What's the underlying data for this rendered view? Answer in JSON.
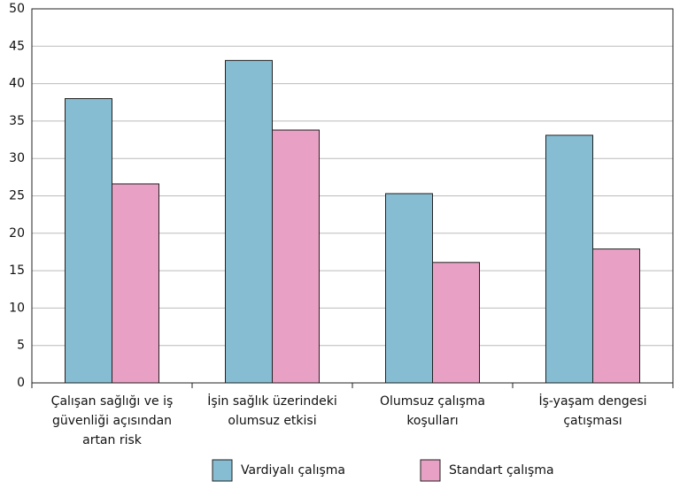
{
  "chart_data": {
    "type": "bar",
    "categories": [
      "Çalışan sağlığı ve iş güvenliği açısından artan risk",
      "İşin sağlık üzerindeki olumsuz etkisi",
      "Olumsuz çalışma koşulları",
      "İş-yaşam dengesi çatışması"
    ],
    "series": [
      {
        "name": "Vardiyalı çalışma",
        "color": "#87bdd3",
        "values": [
          38,
          43.1,
          25.3,
          33.1
        ]
      },
      {
        "name": "Standart çalışma",
        "color": "#e8a0c4",
        "values": [
          26.6,
          33.8,
          16.1,
          17.9
        ]
      }
    ],
    "ylim": [
      0,
      50
    ],
    "yticks": [
      0,
      5,
      10,
      15,
      20,
      25,
      30,
      35,
      40,
      45,
      50
    ],
    "grid": true,
    "legend": "bottom"
  }
}
